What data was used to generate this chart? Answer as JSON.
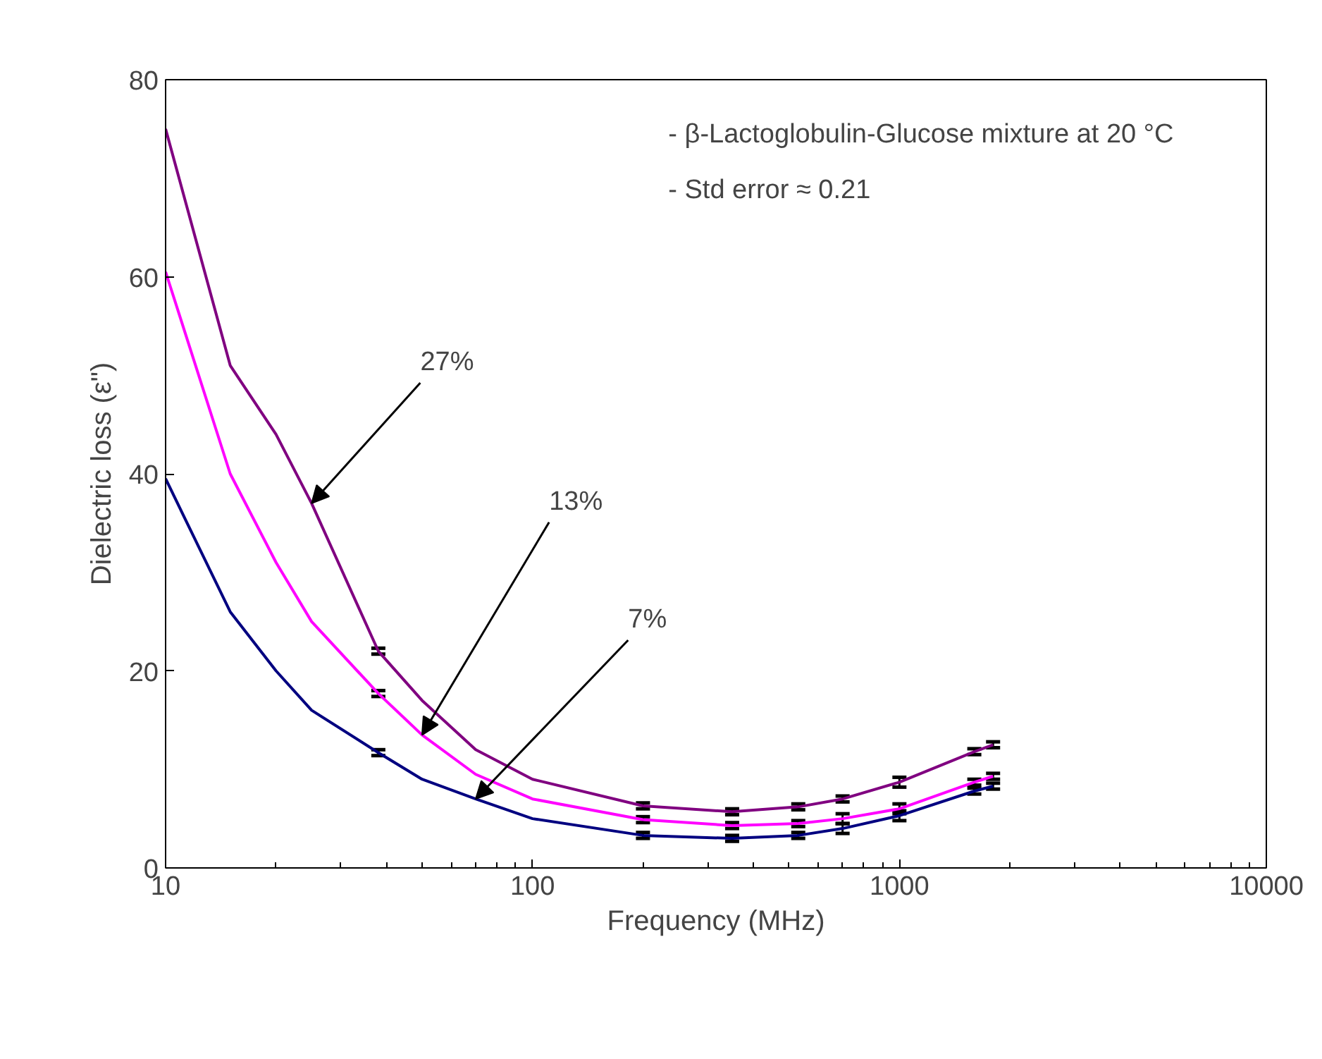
{
  "chart_data": {
    "type": "line",
    "xlabel": "Frequency (MHz)",
    "ylabel": "Dielectric loss (ε\")",
    "log": "x",
    "grid": false,
    "marker": "none",
    "line_style": "solid",
    "xlim": [
      10,
      10000
    ],
    "xticks": [
      10,
      100,
      1000,
      10000
    ],
    "ylim": [
      0,
      80
    ],
    "yticks": [
      0,
      20,
      40,
      60,
      80
    ],
    "x": [
      10,
      15,
      20,
      25,
      38,
      50,
      70,
      100,
      200,
      350,
      530,
      700,
      1000,
      1600,
      1800
    ],
    "series": [
      {
        "color": "#800080",
        "values": [
          75,
          51,
          44,
          37,
          22,
          17,
          12,
          9,
          6.3,
          5.7,
          6.2,
          7,
          8.7,
          11.8,
          12.5
        ],
        "errors": [
          null,
          null,
          null,
          null,
          0.3,
          null,
          null,
          null,
          0.3,
          0.3,
          0.3,
          0.3,
          0.5,
          0.3,
          0.3
        ]
      },
      {
        "color": "#ff00ff",
        "values": [
          60.5,
          40,
          31,
          25,
          17.7,
          13.5,
          9.5,
          7,
          4.9,
          4.3,
          4.5,
          5,
          6,
          8.7,
          9.3
        ],
        "errors": [
          null,
          null,
          null,
          null,
          0.3,
          null,
          null,
          null,
          0.3,
          0.3,
          0.3,
          0.5,
          0.5,
          0.3,
          0.3
        ]
      },
      {
        "color": "#000080",
        "values": [
          39.5,
          26,
          20,
          16,
          11.7,
          9,
          7,
          5,
          3.3,
          3,
          3.3,
          4,
          5.3,
          7.8,
          8.3
        ],
        "errors": [
          null,
          null,
          null,
          null,
          0.3,
          null,
          null,
          null,
          0.3,
          0.3,
          0.3,
          0.5,
          0.5,
          0.3,
          0.3
        ]
      }
    ],
    "annotations": [
      "- β-Lactoglobulin-Glucose mixture at 20 °C",
      "- Std error ≈ 0.21",
      {
        "text": "27%",
        "x": 25,
        "y": 37
      },
      {
        "text": "13%",
        "x": 50,
        "y": 13.5
      },
      {
        "text": "7%",
        "x": 70,
        "y": 7
      }
    ]
  }
}
